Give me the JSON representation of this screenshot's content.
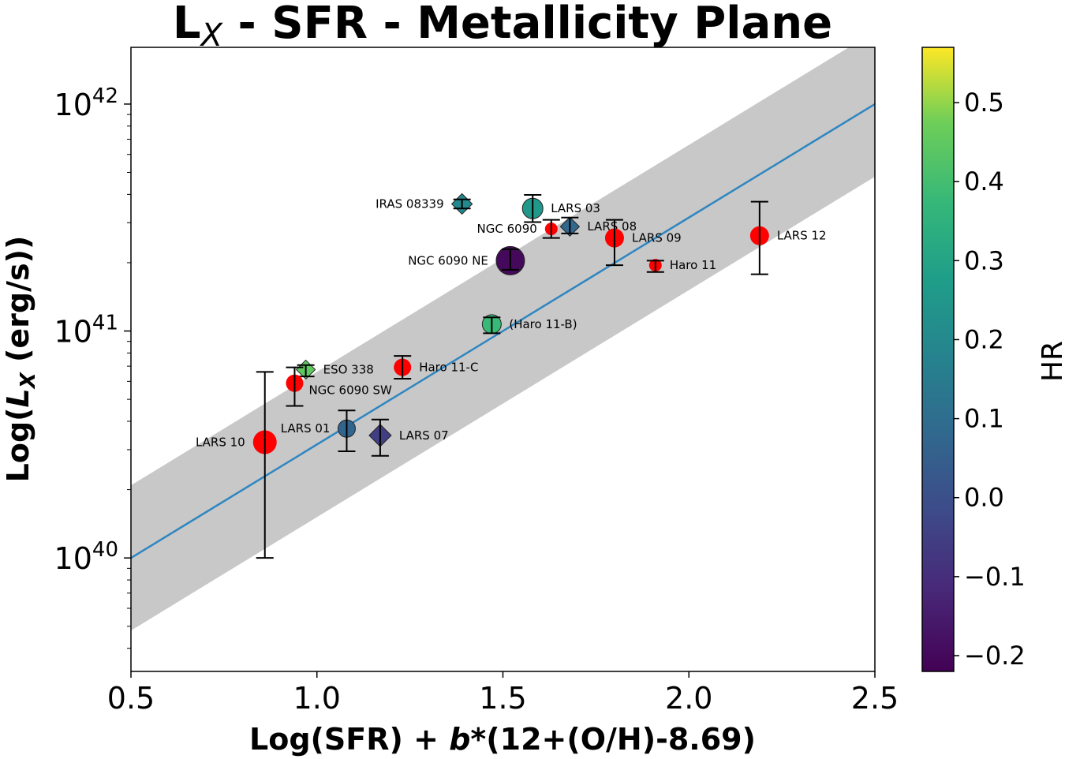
{
  "chart_data": {
    "type": "scatter",
    "title": {
      "main": "L",
      "sub": "X",
      "rest": " - SFR - Metallicity Plane"
    },
    "xlabel": {
      "pre": "Log(SFR) + ",
      "italic": "b",
      "post": "*(12+(O/H)-8.69)"
    },
    "ylabel": {
      "pre": "Log(",
      "italic": "L",
      "sub": "X",
      "post": " (erg/s))"
    },
    "xlim": [
      0.5,
      2.5
    ],
    "ylim_log10": [
      39.5,
      42.25
    ],
    "xticks": [
      0.5,
      1.0,
      1.5,
      2.0,
      2.5
    ],
    "xtick_labels": [
      "0.5",
      "1.0",
      "1.5",
      "2.0",
      "2.5"
    ],
    "yticks": [
      {
        "value": 40,
        "base": "10",
        "exp": "40"
      },
      {
        "value": 41,
        "base": "10",
        "exp": "41"
      },
      {
        "value": 42,
        "base": "10",
        "exp": "42"
      }
    ],
    "relation": {
      "slope": 1.0,
      "intercept": 39.5,
      "scatter_dex": 0.32,
      "color": "#2e86c1",
      "band_color": "#c8c8c8"
    },
    "colorbar": {
      "label": "HR",
      "range": [
        -0.22,
        0.57
      ],
      "ticks": [
        -0.2,
        -0.1,
        0.0,
        0.1,
        0.2,
        0.3,
        0.4,
        0.5
      ],
      "tick_labels": [
        "−0.2",
        "−0.1",
        "0.0",
        "0.1",
        "0.2",
        "0.3",
        "0.4",
        "0.5"
      ]
    },
    "points": [
      {
        "name": "IRAS 08339",
        "x": 1.39,
        "logy": 41.56,
        "ylo": 41.54,
        "yhi": 41.58,
        "hr": 0.2,
        "marker": "diamond",
        "size": 13,
        "label_side": "left"
      },
      {
        "name": "LARS 03",
        "x": 1.58,
        "logy": 41.54,
        "ylo": 41.48,
        "yhi": 41.6,
        "hr": 0.26,
        "marker": "circle",
        "size": 13,
        "label_side": "right"
      },
      {
        "name": "NGC 6090",
        "x": 1.63,
        "logy": 41.45,
        "ylo": 41.41,
        "yhi": 41.49,
        "hr": null,
        "marker": "circle",
        "size": 8,
        "label_side": "left"
      },
      {
        "name": "LARS 08",
        "x": 1.68,
        "logy": 41.46,
        "ylo": 41.43,
        "yhi": 41.5,
        "hr": 0.08,
        "marker": "diamond",
        "size": 12,
        "label_side": "right"
      },
      {
        "name": "NGC 6090 NE",
        "x": 1.52,
        "logy": 41.31,
        "ylo": 41.27,
        "yhi": 41.36,
        "hr": -0.2,
        "marker": "circle",
        "size": 18,
        "label_side": "left"
      },
      {
        "name": "LARS 09",
        "x": 1.8,
        "logy": 41.41,
        "ylo": 41.29,
        "yhi": 41.49,
        "hr": null,
        "marker": "circle",
        "size": 12,
        "label_side": "right"
      },
      {
        "name": "Haro 11",
        "x": 1.91,
        "logy": 41.29,
        "ylo": 41.26,
        "yhi": 41.31,
        "hr": null,
        "marker": "circle",
        "size": 8,
        "label_side": "right"
      },
      {
        "name": "LARS 12",
        "x": 2.19,
        "logy": 41.42,
        "ylo": 41.25,
        "yhi": 41.57,
        "hr": null,
        "marker": "circle",
        "size": 12,
        "label_side": "right"
      },
      {
        "name": "(Haro 11-B)",
        "x": 1.47,
        "logy": 41.03,
        "ylo": 40.99,
        "yhi": 41.06,
        "hr": 0.38,
        "marker": "circle",
        "size": 12,
        "label_side": "right"
      },
      {
        "name": "ESO 338",
        "x": 0.97,
        "logy": 40.83,
        "ylo": 40.8,
        "yhi": 40.85,
        "hr": 0.45,
        "marker": "diamond",
        "size": 12,
        "label_side": "right"
      },
      {
        "name": "Haro 11-C",
        "x": 1.23,
        "logy": 40.84,
        "ylo": 40.79,
        "yhi": 40.89,
        "hr": null,
        "marker": "circle",
        "size": 11,
        "label_side": "right"
      },
      {
        "name": "NGC 6090 SW",
        "x": 0.94,
        "logy": 40.77,
        "ylo": 40.67,
        "yhi": 40.84,
        "hr": null,
        "marker": "circle",
        "size": 11,
        "label_side": "right-below"
      },
      {
        "name": "LARS 01",
        "x": 1.08,
        "logy": 40.57,
        "ylo": 40.47,
        "yhi": 40.65,
        "hr": 0.07,
        "marker": "circle",
        "size": 11,
        "label_side": "left"
      },
      {
        "name": "LARS 07",
        "x": 1.17,
        "logy": 40.54,
        "ylo": 40.45,
        "yhi": 40.61,
        "hr": -0.05,
        "marker": "diamond",
        "size": 14,
        "label_side": "right"
      },
      {
        "name": "LARS 10",
        "x": 0.86,
        "logy": 40.51,
        "ylo": 40.0,
        "yhi": 40.82,
        "hr": null,
        "marker": "circle",
        "size": 15,
        "label_side": "left"
      }
    ],
    "no_hr_color": "#ff0000"
  }
}
